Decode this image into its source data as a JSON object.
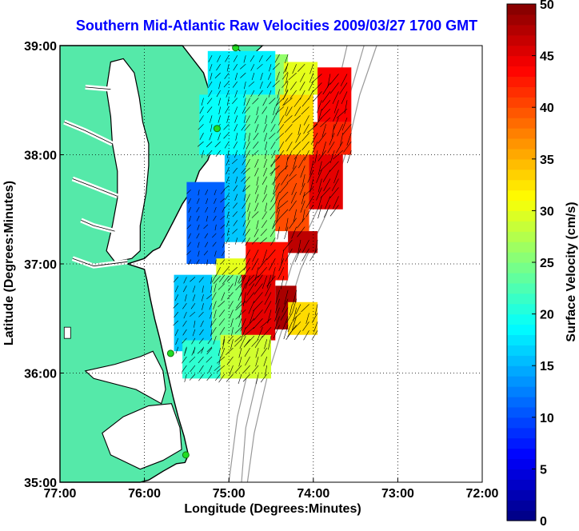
{
  "chart_data": {
    "type": "heatmap",
    "title": "Southern Mid-Atlantic Raw Velocities 2009/03/27 1700 GMT",
    "xlabel": "Longitude (Degrees:Minutes)",
    "ylabel": "Latitude (Degrees:Minutes)",
    "xlim": [
      -77,
      -72
    ],
    "ylim": [
      35,
      39
    ],
    "x_ticks": [
      -77,
      -76,
      -75,
      -74,
      -73,
      -72
    ],
    "x_tick_labels": [
      "77:00",
      "76:00",
      "75:00",
      "74:00",
      "73:00",
      "72:00"
    ],
    "y_ticks": [
      35,
      36,
      37,
      38,
      39
    ],
    "y_tick_labels": [
      "35:00",
      "36:00",
      "37:00",
      "38:00",
      "39:00"
    ],
    "grid": true,
    "colorbar": {
      "label": "Surface Velocity (cm/s)",
      "min": 0,
      "max": 50,
      "ticks": [
        0,
        5,
        10,
        15,
        20,
        25,
        30,
        35,
        40,
        45,
        50
      ],
      "tick_labels": [
        "0",
        "5",
        "10",
        "15",
        "20",
        "25",
        "30",
        "35",
        "40",
        "45",
        "50"
      ]
    },
    "colors": {
      "land": "#55e9a9",
      "water": "#ffffff",
      "title": "#0000ff",
      "coastline": "#000000",
      "bathymetry": "#999999",
      "stations": "#22dd22"
    },
    "stations": [
      {
        "lon": -74.92,
        "lat": 38.98
      },
      {
        "lon": -75.14,
        "lat": 38.24
      },
      {
        "lon": -75.69,
        "lat": 36.18
      },
      {
        "lon": -75.51,
        "lat": 35.25
      }
    ],
    "velocity_regions": [
      {
        "lon": [
          -75.25,
          -74.45
        ],
        "lat": [
          38.55,
          38.95
        ],
        "speed": 18
      },
      {
        "lon": [
          -74.45,
          -74.3
        ],
        "lat": [
          38.4,
          38.92
        ],
        "speed": 26
      },
      {
        "lon": [
          -74.35,
          -73.95
        ],
        "lat": [
          38.55,
          38.85
        ],
        "speed": 30
      },
      {
        "lon": [
          -73.95,
          -73.55
        ],
        "lat": [
          38.3,
          38.8
        ],
        "speed": 44
      },
      {
        "lon": [
          -75.35,
          -74.8
        ],
        "lat": [
          38.0,
          38.55
        ],
        "speed": 19
      },
      {
        "lon": [
          -74.8,
          -74.4
        ],
        "lat": [
          38.0,
          38.55
        ],
        "speed": 23
      },
      {
        "lon": [
          -74.4,
          -74.0
        ],
        "lat": [
          38.0,
          38.55
        ],
        "speed": 33
      },
      {
        "lon": [
          -74.0,
          -73.55
        ],
        "lat": [
          38.0,
          38.3
        ],
        "speed": 42
      },
      {
        "lon": [
          -75.5,
          -75.05
        ],
        "lat": [
          37.0,
          37.75
        ],
        "speed": 11
      },
      {
        "lon": [
          -75.05,
          -74.8
        ],
        "lat": [
          37.2,
          38.0
        ],
        "speed": 16
      },
      {
        "lon": [
          -74.8,
          -74.45
        ],
        "lat": [
          37.2,
          38.0
        ],
        "speed": 25
      },
      {
        "lon": [
          -74.45,
          -74.05
        ],
        "lat": [
          37.3,
          38.0
        ],
        "speed": 40
      },
      {
        "lon": [
          -74.05,
          -73.65
        ],
        "lat": [
          37.5,
          38.0
        ],
        "speed": 45
      },
      {
        "lon": [
          -74.8,
          -74.3
        ],
        "lat": [
          36.85,
          37.2
        ],
        "speed": 43
      },
      {
        "lon": [
          -74.3,
          -73.95
        ],
        "lat": [
          37.1,
          37.3
        ],
        "speed": 47
      },
      {
        "lon": [
          -75.15,
          -74.8
        ],
        "lat": [
          36.85,
          37.05
        ],
        "speed": 30
      },
      {
        "lon": [
          -75.65,
          -75.2
        ],
        "lat": [
          36.2,
          36.9
        ],
        "speed": 16
      },
      {
        "lon": [
          -75.2,
          -74.85
        ],
        "lat": [
          36.3,
          36.9
        ],
        "speed": 24
      },
      {
        "lon": [
          -74.85,
          -74.45
        ],
        "lat": [
          36.3,
          36.9
        ],
        "speed": 45
      },
      {
        "lon": [
          -74.45,
          -74.2
        ],
        "lat": [
          36.4,
          36.8
        ],
        "speed": 48
      },
      {
        "lon": [
          -74.3,
          -73.95
        ],
        "lat": [
          36.35,
          36.65
        ],
        "speed": 33
      },
      {
        "lon": [
          -75.55,
          -75.1
        ],
        "lat": [
          35.95,
          36.3
        ],
        "speed": 21
      },
      {
        "lon": [
          -75.1,
          -74.5
        ],
        "lat": [
          35.95,
          36.35
        ],
        "speed": 29
      }
    ]
  }
}
